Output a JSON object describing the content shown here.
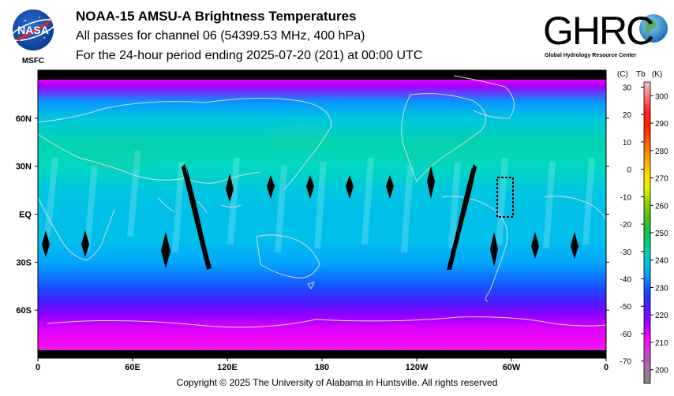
{
  "header": {
    "title": "NOAA-15 AMSU-A Brightness Temperatures",
    "subtitle": "All passes for channel 06 (54399.53 MHz, 400 hPa)",
    "period": "For the 24-hour period ending 2025-07-20 (201) at 00:00 UTC"
  },
  "logos": {
    "nasa": {
      "text": "NASA",
      "caption": "MSFC"
    },
    "ghrc": {
      "text": "GHRC",
      "caption": "Global Hydrology Resource Center"
    }
  },
  "footer": {
    "copyright": "Copyright © 2025 The University of Alabama in Huntsville.  All rights reserved"
  },
  "chart_data": {
    "type": "heatmap",
    "title": "NOAA-15 AMSU-A Brightness Temperatures",
    "projection": "equirectangular global map",
    "x_ticks": [
      "0",
      "60E",
      "120E",
      "180",
      "120W",
      "60W",
      "0"
    ],
    "y_ticks": [
      "60N",
      "30N",
      "EQ",
      "30S",
      "60S"
    ],
    "colorbar": {
      "unit_c_label": "(C)",
      "tb_label": "Tb",
      "unit_k_label": "(K)",
      "range_k": [
        195,
        305
      ],
      "c_ticks": [
        "30",
        "20",
        "10",
        "0",
        "-10",
        "-20",
        "-30",
        "-40",
        "-50",
        "-60",
        "-70"
      ],
      "k_ticks": [
        "300",
        "290",
        "280",
        "270",
        "260",
        "250",
        "240",
        "230",
        "220",
        "210",
        "200"
      ]
    },
    "zonal_profile_k": [
      {
        "lat": 90,
        "tb": 213
      },
      {
        "lat": 80,
        "tb": 217
      },
      {
        "lat": 70,
        "tb": 234
      },
      {
        "lat": 60,
        "tb": 239
      },
      {
        "lat": 45,
        "tb": 243
      },
      {
        "lat": 30,
        "tb": 242
      },
      {
        "lat": 15,
        "tb": 239
      },
      {
        "lat": 0,
        "tb": 238
      },
      {
        "lat": -15,
        "tb": 238
      },
      {
        "lat": -30,
        "tb": 235
      },
      {
        "lat": -45,
        "tb": 229
      },
      {
        "lat": -55,
        "tb": 223
      },
      {
        "lat": -62,
        "tb": 218
      },
      {
        "lat": -70,
        "tb": 214
      },
      {
        "lat": -80,
        "tb": 211
      },
      {
        "lat": -90,
        "tb": 209
      }
    ],
    "colors": {
      "missing": "#000000",
      "coastline": "#d8d8d8"
    }
  }
}
